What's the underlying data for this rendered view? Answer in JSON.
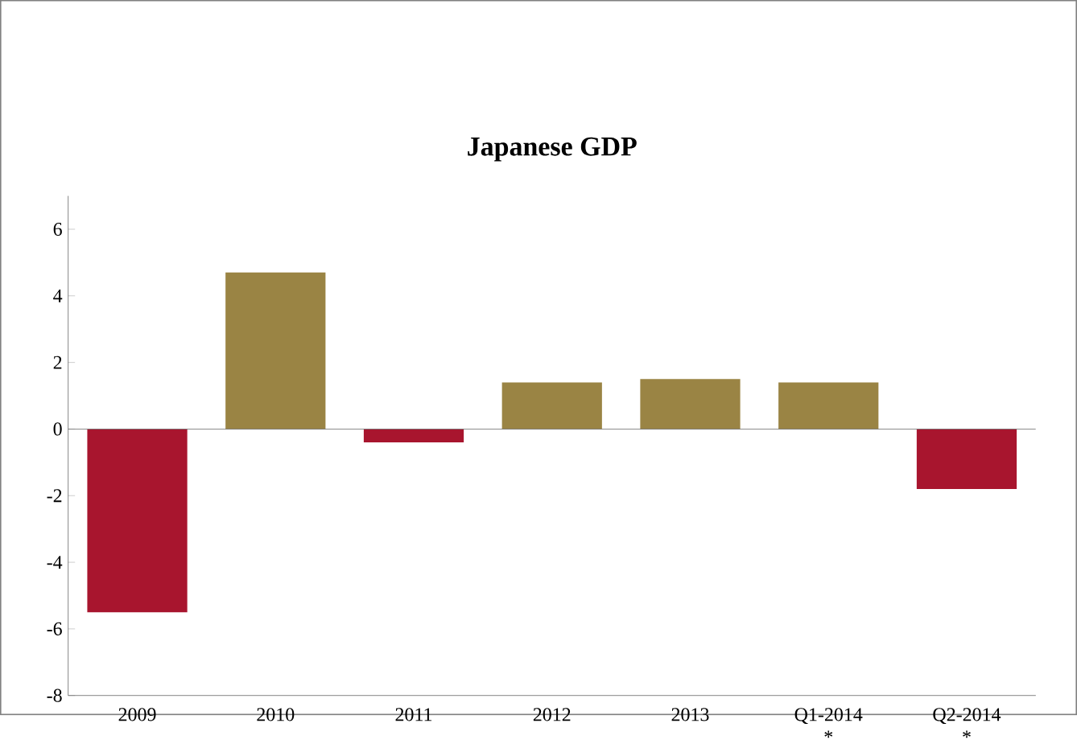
{
  "chart_data": {
    "type": "bar",
    "title": "Japanese GDP",
    "categories": [
      "2009",
      "2010",
      "2011",
      "2012",
      "2013",
      "Q1-2014 *",
      "Q2-2014 *"
    ],
    "values": [
      -5.5,
      4.7,
      -0.4,
      1.4,
      1.5,
      1.4,
      -1.8
    ],
    "colors": [
      "#a8152e",
      "#9a8444",
      "#a8152e",
      "#9a8444",
      "#9a8444",
      "#9a8444",
      "#a8152e"
    ],
    "ylim": [
      -8,
      7
    ],
    "yticks": [
      -8,
      -6,
      -4,
      -2,
      0,
      2,
      4,
      6
    ]
  }
}
